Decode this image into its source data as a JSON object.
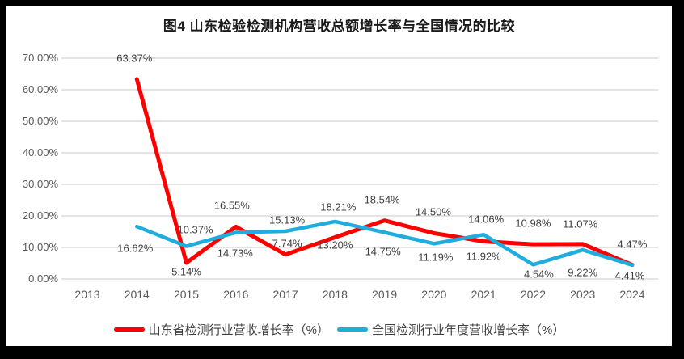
{
  "title": "图4  山东检验检测机构营收总额增长率与全国情况的比较",
  "colors": {
    "frame": "#000000",
    "chart_background": "#ffffff",
    "gridline": "#dcdcdc",
    "axis_text": "#595959",
    "data_label_text": "#404040",
    "series_red": "#fe0000",
    "series_blue": "#1fadde"
  },
  "chart_data": {
    "type": "line",
    "title": "图4  山东检验检测机构营收总额增长率与全国情况的比较",
    "categories": [
      "2013",
      "2014",
      "2015",
      "2016",
      "2017",
      "2018",
      "2019",
      "2020",
      "2021",
      "2022",
      "2023",
      "2024"
    ],
    "xlabel": "",
    "ylabel": "",
    "ylim": [
      0,
      70
    ],
    "grid": true,
    "legend_position": "bottom",
    "y_ticks": [
      "0.00%",
      "10.00%",
      "20.00%",
      "30.00%",
      "40.00%",
      "50.00%",
      "60.00%",
      "70.00%"
    ],
    "y_tick_values": [
      0,
      10,
      20,
      30,
      40,
      50,
      60,
      70
    ],
    "series": [
      {
        "name": "山东省检测行业营收增长率（%）",
        "color": "#fe0000",
        "stroke_width": 5,
        "start_category": "2014",
        "values": [
          63.37,
          5.14,
          16.55,
          7.74,
          13.2,
          18.54,
          14.5,
          11.92,
          10.98,
          11.07,
          4.47
        ],
        "labels": [
          "63.37%",
          "5.14%",
          "16.55%",
          "7.74%",
          "13.20%",
          "18.54%",
          "14.50%",
          "11.92%",
          "10.98%",
          "11.07%",
          "4.47%"
        ],
        "label_offsets": [
          [
            -3,
            -26
          ],
          [
            0,
            11
          ],
          [
            -5,
            -26
          ],
          [
            2,
            -14
          ],
          [
            0,
            9
          ],
          [
            -3,
            -26
          ],
          [
            -1,
            -26
          ],
          [
            0,
            18
          ],
          [
            0,
            -26
          ],
          [
            -3,
            -25
          ],
          [
            0,
            -26
          ]
        ]
      },
      {
        "name": "全国检测行业年度营收增长率（%）",
        "color": "#1fadde",
        "stroke_width": 4.5,
        "start_category": "2014",
        "values": [
          16.62,
          10.37,
          14.73,
          15.13,
          18.21,
          14.75,
          11.19,
          14.06,
          4.54,
          9.22,
          4.41
        ],
        "labels": [
          "16.62%",
          "10.37%",
          "14.73%",
          "15.13%",
          "18.21%",
          "14.75%",
          "11.19%",
          "14.06%",
          "4.54%",
          "9.22%",
          "4.41%"
        ],
        "label_offsets": [
          [
            -2,
            27
          ],
          [
            11,
            -21
          ],
          [
            -1,
            25
          ],
          [
            2,
            -14
          ],
          [
            4,
            -18
          ],
          [
            -2,
            24
          ],
          [
            2,
            17
          ],
          [
            3,
            -19
          ],
          [
            7,
            12
          ],
          [
            0,
            28
          ],
          [
            -3,
            13
          ]
        ]
      }
    ]
  }
}
